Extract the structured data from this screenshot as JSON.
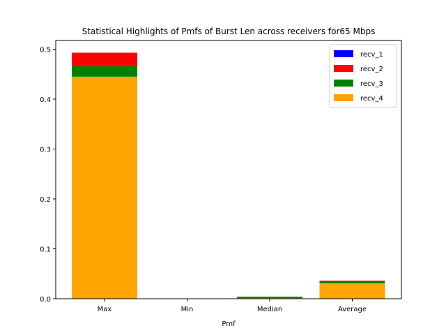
{
  "chart_data": {
    "type": "bar",
    "stacked": true,
    "title": "Statistical Highlights of Pmfs of Burst Len across receivers for65 Mbps",
    "xlabel": "Pmf",
    "ylabel": "",
    "categories": [
      "Max",
      "Min",
      "Median",
      "Average"
    ],
    "ylim": [
      0,
      0.5
    ],
    "yticks": [
      0.0,
      0.1,
      0.2,
      0.3,
      0.4,
      0.5
    ],
    "ytick_labels": [
      "0.0",
      "0.1",
      "0.2",
      "0.3",
      "0.4",
      "0.5"
    ],
    "legend_position": "top-right",
    "grid": false,
    "series": [
      {
        "name": "recv_1",
        "color": "#0000ff",
        "values": [
          0.0,
          0.0,
          0.0,
          0.0
        ]
      },
      {
        "name": "recv_2",
        "color": "#ff0000",
        "values": [
          0.027,
          0.0,
          0.0,
          0.001
        ]
      },
      {
        "name": "recv_3",
        "color": "#008000",
        "values": [
          0.021,
          0.0,
          0.003,
          0.004
        ]
      },
      {
        "name": "recv_4",
        "color": "#ffa500",
        "values": [
          0.445,
          0.0,
          0.001,
          0.031
        ]
      }
    ]
  }
}
